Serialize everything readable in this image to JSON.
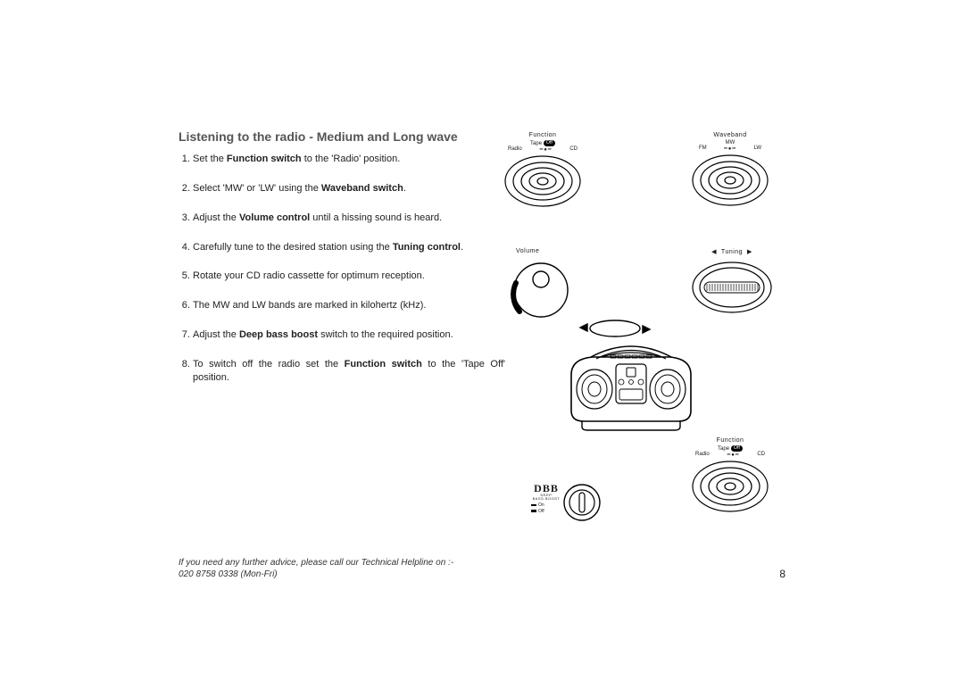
{
  "title": "Listening to the radio - Medium and Long wave",
  "steps": [
    "Set the <b>Function switch</b> to the 'Radio' position.",
    "Select 'MW' or 'LW' using the <b>Waveband switch</b>.",
    "Adjust the <b>Volume control</b> until a hissing sound is heard.",
    "Carefully tune to the desired station using the <b>Tuning control</b>.",
    "Rotate your CD radio cassette  for optimum reception.",
    "The  MW and LW bands are marked in kilohertz  (kHz).",
    "Adjust the <b>Deep bass boost</b> switch to the required position.",
    "To switch off the radio set the <b>Function switch</b>  to the 'Tape  Off' position."
  ],
  "helpline_line1": "If you need any further advice, please call our Technical Helpline on :-",
  "helpline_line2": "020 8758 0338 (Mon-Fri)",
  "page_number": "8",
  "labels": {
    "function": "Function",
    "waveband": "Waveband",
    "volume": "Volume",
    "tuning": "Tuning",
    "tape": "Tape",
    "off": "Off",
    "radio": "Radio",
    "cd": "CD",
    "mw": "MW",
    "fm": "FM",
    "lw": "LW",
    "dbb": "DBB",
    "dbb_sub1": "DEEP",
    "dbb_sub2": "BASS BOOST",
    "on": "On",
    "off2": "Off"
  },
  "style": {
    "stroke": "#000000",
    "stroke_width": 1.2,
    "fill": "none"
  }
}
